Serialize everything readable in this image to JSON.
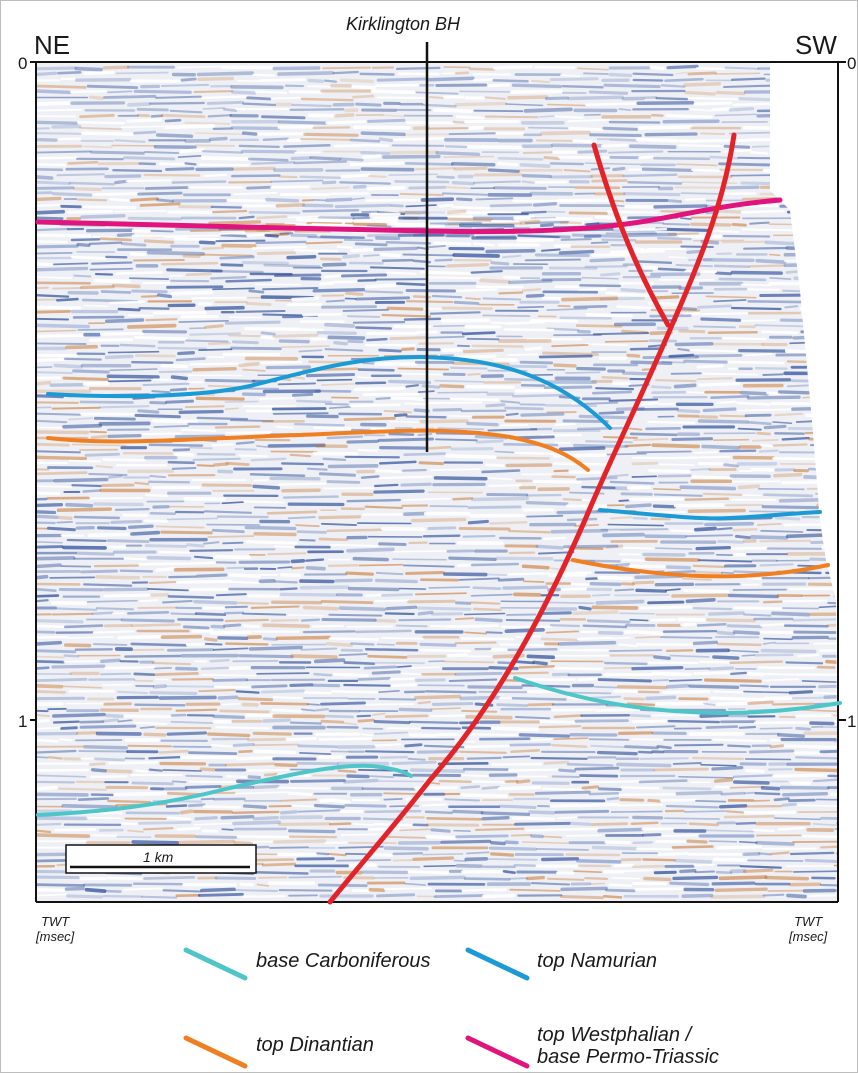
{
  "section": {
    "title": "Kirklington BH",
    "left_direction": "NE",
    "right_direction": "SW",
    "axis_unit": "TWT [msec]",
    "axis_unit_line1": "TWT",
    "axis_unit_line2": "[msec]",
    "ticks": {
      "top_left": "0",
      "top_right": "0",
      "mid_left": "1",
      "mid_right": "1"
    },
    "scale_bar_label": "1 km"
  },
  "colors": {
    "fault": "#e3232a",
    "borehole": "#111111",
    "base_carboniferous": "#4ec6c8",
    "top_namurian": "#1c9ad6",
    "top_dinantian": "#f07f22",
    "top_westphalian": "#e0147c",
    "seismic_blue": "#2f4f9a",
    "seismic_orange": "#c8742e"
  },
  "legend": {
    "items": [
      {
        "key": "base_carboniferous",
        "label": "base Carboniferous"
      },
      {
        "key": "top_namurian",
        "label": "top Namurian"
      },
      {
        "key": "top_dinantian",
        "label": "top Dinantian"
      },
      {
        "key": "top_westphalian",
        "label_line1": "top Westphalian /",
        "label_line2": "base Permo-Triassic"
      }
    ]
  }
}
